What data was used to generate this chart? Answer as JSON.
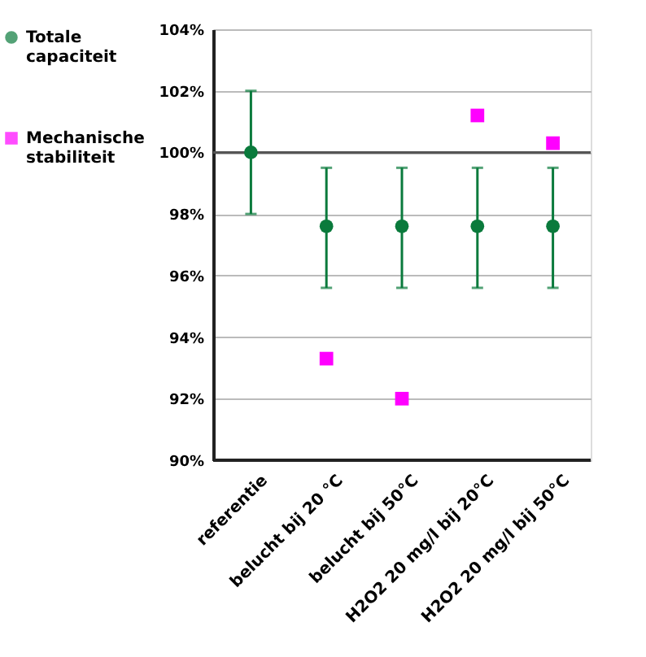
{
  "chart_data": {
    "type": "scatter",
    "categories": [
      "referentie",
      "belucht bij 20 °C",
      "belucht bij 50°C",
      "H2O2 20 mg/l bij 20°C",
      "H2O2 20 mg/l bij 50°C"
    ],
    "series": [
      {
        "name": "Totale capaciteit",
        "color": "#0a7a3c",
        "marker": "circle",
        "values": [
          100,
          97.6,
          97.6,
          97.6,
          97.6
        ],
        "errors": [
          2,
          [
            95.6,
            99.5
          ],
          [
            95.6,
            99.5
          ],
          [
            95.6,
            99.5
          ],
          [
            95.6,
            99.5
          ]
        ]
      },
      {
        "name": "Mechanische stabiliteit",
        "color": "#ff00ff",
        "marker": "square",
        "values": [
          null,
          93.3,
          92.0,
          101.2,
          100.3
        ]
      }
    ],
    "ylim": [
      90,
      104
    ],
    "yticks": [
      {
        "value": 90,
        "label": "90%"
      },
      {
        "value": 92,
        "label": "92%"
      },
      {
        "value": 94,
        "label": "94%"
      },
      {
        "value": 96,
        "label": "96%"
      },
      {
        "value": 98,
        "label": "98%"
      },
      {
        "value": 100,
        "label": "100%"
      },
      {
        "value": 102,
        "label": "102%"
      },
      {
        "value": 104,
        "label": "104%"
      }
    ],
    "ref_lines": [
      {
        "axis": "y",
        "value": 100,
        "label": null,
        "color": "#555555"
      }
    ],
    "grid": "y",
    "legend": "left"
  }
}
